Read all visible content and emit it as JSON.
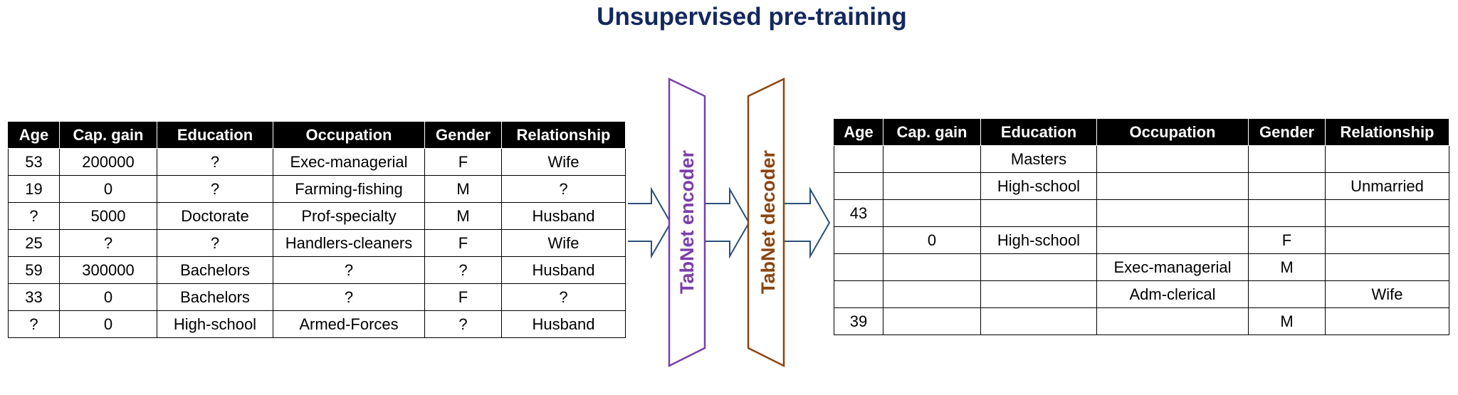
{
  "title": "Unsupervised pre-training",
  "columns": [
    "Age",
    "Cap. gain",
    "Education",
    "Occupation",
    "Gender",
    "Relationship"
  ],
  "input_rows": [
    [
      "53",
      "200000",
      "?",
      "Exec-managerial",
      "F",
      "Wife"
    ],
    [
      "19",
      "0",
      "?",
      "Farming-fishing",
      "M",
      "?"
    ],
    [
      "?",
      "5000",
      "Doctorate",
      "Prof-specialty",
      "M",
      "Husband"
    ],
    [
      "25",
      "?",
      "?",
      "Handlers-cleaners",
      "F",
      "Wife"
    ],
    [
      "59",
      "300000",
      "Bachelors",
      "?",
      "?",
      "Husband"
    ],
    [
      "33",
      "0",
      "Bachelors",
      "?",
      "F",
      "?"
    ],
    [
      "?",
      "0",
      "High-school",
      "Armed-Forces",
      "?",
      "Husband"
    ]
  ],
  "output_rows": [
    [
      "",
      "",
      "Masters",
      "",
      "",
      ""
    ],
    [
      "",
      "",
      "High-school",
      "",
      "",
      "Unmarried"
    ],
    [
      "43",
      "",
      "",
      "",
      "",
      ""
    ],
    [
      "",
      "0",
      "High-school",
      "",
      "F",
      ""
    ],
    [
      "",
      "",
      "",
      "Exec-managerial",
      "M",
      ""
    ],
    [
      "",
      "",
      "",
      "Adm-clerical",
      "",
      "Wife"
    ],
    [
      "39",
      "",
      "",
      "",
      "M",
      ""
    ]
  ],
  "encoder_label": "TabNet encoder",
  "decoder_label": "TabNet decoder",
  "colors": {
    "title": "#14285e",
    "encoder": "#7b3fa8",
    "decoder": "#8a4511",
    "arrow": "#2b4f78"
  }
}
